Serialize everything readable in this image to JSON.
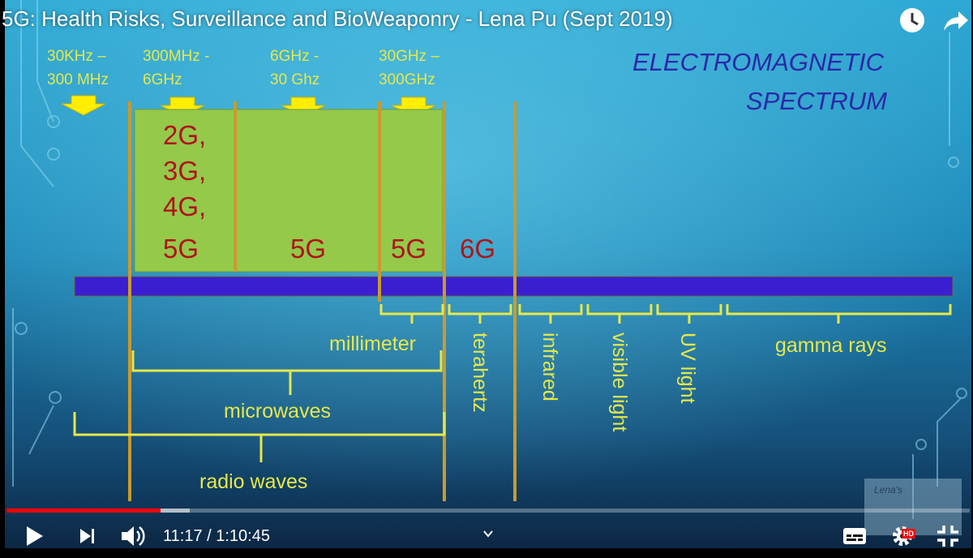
{
  "video": {
    "title": "5G: Health Risks, Surveillance and BioWeaponry - Lena Pu (Sept 2019)",
    "current_time": "11:17",
    "duration": "1:10:45",
    "time_display": "11:17 / 1:10:45",
    "progress_percent": 16,
    "buffered_percent": 19,
    "quality_badge": "HD"
  },
  "slide": {
    "heading": [
      "ELECTROMAGNETIC",
      "SPECTRUM"
    ],
    "bands": [
      {
        "range": [
          "30KHz –",
          "300 MHz"
        ]
      },
      {
        "range": [
          "300MHz -",
          "6GHz"
        ],
        "gens": [
          "2G,",
          "3G,",
          "4G,",
          "5G"
        ]
      },
      {
        "range": [
          "6GHz -",
          "30 Ghz"
        ],
        "gens": [
          "5G"
        ]
      },
      {
        "range": [
          "30GHz –",
          "300GHz"
        ],
        "gens": [
          "5G"
        ]
      }
    ],
    "extra_gen": "6G",
    "labels": {
      "millimeter": "millimeter",
      "microwaves": "microwaves",
      "radio_waves": "radio waves",
      "terahertz": "terahertz",
      "infrared": "infrared",
      "visible_light": "visible light",
      "uv_light": "UV light",
      "gamma_rays": "gamma rays"
    },
    "watermark": "Lena's"
  },
  "colors": {
    "accent": "#ff0000",
    "slide_text": "#f2f23a",
    "gen_text": "#b0141a",
    "heading": "#2a2aa8",
    "bar": "#3a1fd0",
    "green": "#94c94a"
  }
}
